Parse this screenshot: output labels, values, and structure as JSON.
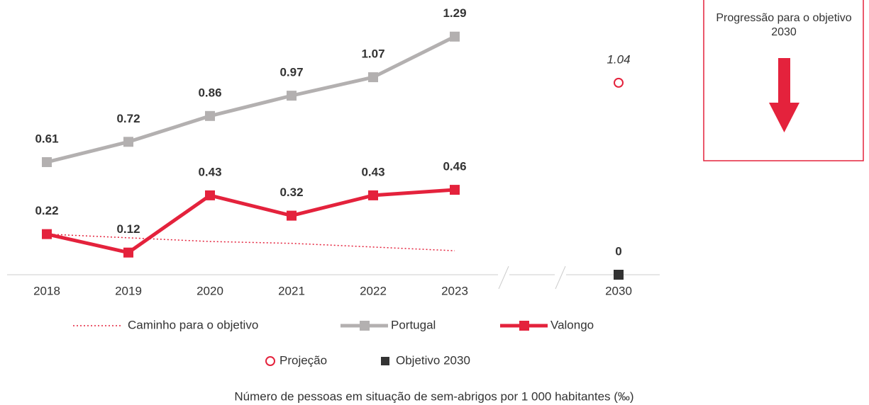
{
  "chart_data": {
    "type": "line",
    "caption": "Número de pessoas em situação de sem-abrigos por 1 000 habitantes (‰)",
    "side_note": "Progressão para o objetivo 2030",
    "categories": [
      "2018",
      "2019",
      "2020",
      "2021",
      "2022",
      "2023",
      "2030"
    ],
    "ylim": [
      0,
      1.45
    ],
    "series": [
      {
        "name": "Caminho para o objetivo",
        "color": "#e4223c",
        "dashed": true,
        "marker": "none",
        "values": [
          0.22,
          0.2,
          0.18,
          0.17,
          0.15,
          0.13,
          null
        ]
      },
      {
        "name": "Portugal",
        "color": "#b3b0b0",
        "marker": "square",
        "labels": true,
        "values": [
          0.61,
          0.72,
          0.86,
          0.97,
          1.07,
          1.29,
          null
        ]
      },
      {
        "name": "Valongo",
        "color": "#e4223c",
        "marker": "square",
        "labels": true,
        "values": [
          0.22,
          0.12,
          0.43,
          0.32,
          0.43,
          0.46,
          null
        ]
      },
      {
        "name": "Projeção",
        "color": "#e4223c",
        "marker": "circle",
        "labels": true,
        "label_italic": true,
        "values": [
          null,
          null,
          null,
          null,
          null,
          null,
          1.04
        ]
      },
      {
        "name": "Objetivo 2030",
        "color": "#333333",
        "marker": "square",
        "labels": true,
        "values": [
          null,
          null,
          null,
          null,
          null,
          null,
          0
        ]
      }
    ]
  }
}
